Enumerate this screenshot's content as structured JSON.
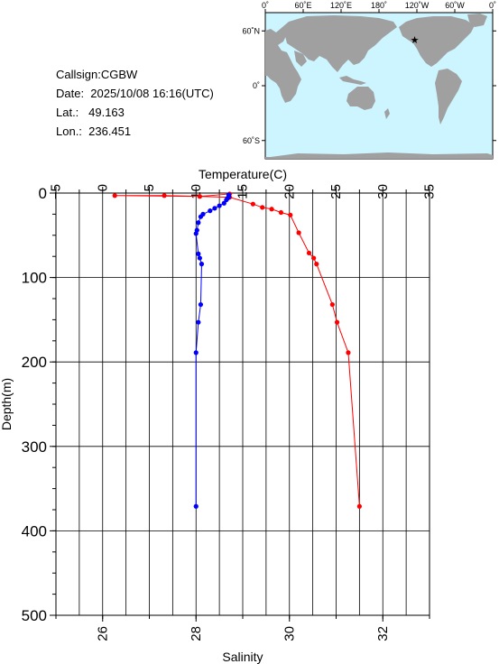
{
  "station": {
    "callsign": "Callsign:CGBW",
    "date": "Date:  2025/10/08 16:16(UTC)",
    "lat": "Lat.:   49.163",
    "lon": "Lon.:  236.451"
  },
  "map": {
    "lon_labels": [
      "0˚",
      "60˚E",
      "120˚E",
      "180˚",
      "120˚W",
      "60˚W",
      "0˚"
    ],
    "lat_labels": [
      "60˚N",
      "0˚",
      "60˚S"
    ],
    "station_lat": 49.163,
    "station_lon": 236.451,
    "ocean_color": "#ccf5ff",
    "land_color": "#a0a0a0",
    "marker_color": "#ff0000"
  },
  "chart_data": {
    "type": "line",
    "ylabel": "Depth(m)",
    "ylim": [
      0,
      500
    ],
    "y_ticks": [
      "0",
      "100",
      "200",
      "300",
      "400",
      "500"
    ],
    "y_inverted": true,
    "grid": true,
    "temperature_axis": {
      "label": "Temperature(C)",
      "position": "top",
      "lim": [
        -5,
        35
      ],
      "ticks": [
        "−5",
        "0",
        "5",
        "10",
        "15",
        "20",
        "25",
        "30",
        "35"
      ]
    },
    "salinity_axis": {
      "label": "Salinity",
      "position": "bottom",
      "lim": [
        25,
        33
      ],
      "ticks": [
        "26",
        "28",
        "30",
        "32"
      ]
    },
    "series": [
      {
        "color": "#ff0000",
        "axis": "temperature",
        "points": [
          [
            13.6,
            1
          ],
          [
            10.4,
            4
          ],
          [
            1.3,
            3
          ],
          [
            6.6,
            3
          ],
          [
            13.6,
            5
          ],
          [
            16.1,
            13
          ],
          [
            17.1,
            17
          ],
          [
            18.1,
            19
          ],
          [
            19.1,
            23
          ],
          [
            20.1,
            26
          ],
          [
            21,
            47
          ],
          [
            22.1,
            71
          ],
          [
            22.6,
            77
          ],
          [
            22.9,
            84
          ],
          [
            24.6,
            132
          ],
          [
            25.1,
            153
          ],
          [
            26.3,
            189
          ],
          [
            27.5,
            371
          ]
        ]
      },
      {
        "color": "#0000ff",
        "axis": "salinity",
        "points": [
          [
            28.7,
            2
          ],
          [
            28.7,
            4
          ],
          [
            28.68,
            6
          ],
          [
            28.65,
            8
          ],
          [
            28.6,
            12
          ],
          [
            28.5,
            15
          ],
          [
            28.4,
            18
          ],
          [
            28.3,
            21
          ],
          [
            28.15,
            25
          ],
          [
            28.1,
            28
          ],
          [
            28.05,
            35
          ],
          [
            28.02,
            44
          ],
          [
            28,
            48
          ],
          [
            28.05,
            72
          ],
          [
            28.08,
            77
          ],
          [
            28.12,
            84
          ],
          [
            28.1,
            132
          ],
          [
            28.05,
            153
          ],
          [
            28,
            189
          ],
          [
            28,
            371
          ]
        ]
      }
    ]
  }
}
